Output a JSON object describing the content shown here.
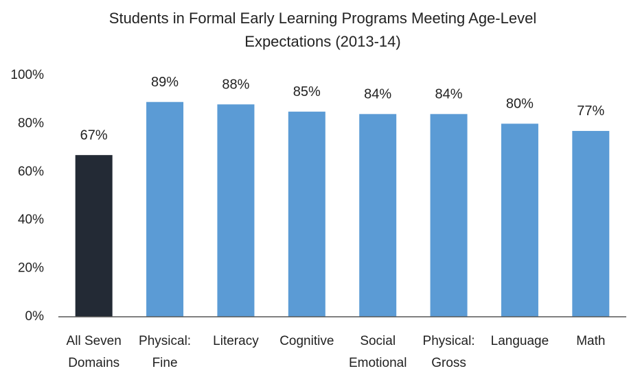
{
  "chart_data": {
    "type": "bar",
    "title": [
      "Students in Formal Early Learning Programs Meeting Age-Level",
      "Expectations (2013-14)"
    ],
    "categories": [
      [
        "All Seven",
        "Domains"
      ],
      [
        "Physical:",
        "Fine"
      ],
      [
        "Literacy"
      ],
      [
        "Cognitive"
      ],
      [
        "Social",
        "Emotional"
      ],
      [
        "Physical:",
        "Gross"
      ],
      [
        "Language"
      ],
      [
        "Math"
      ]
    ],
    "values": [
      67,
      89,
      88,
      85,
      84,
      84,
      80,
      77
    ],
    "value_labels": [
      "67%",
      "89%",
      "88%",
      "85%",
      "84%",
      "84%",
      "80%",
      "77%"
    ],
    "colors": [
      "#232a35",
      "#5b9bd5",
      "#5b9bd5",
      "#5b9bd5",
      "#5b9bd5",
      "#5b9bd5",
      "#5b9bd5",
      "#5b9bd5"
    ],
    "ylim": [
      0,
      100
    ],
    "yticks": [
      {
        "value": 0,
        "label": "0%"
      },
      {
        "value": 20,
        "label": "20%"
      },
      {
        "value": 40,
        "label": "40%"
      },
      {
        "value": 60,
        "label": "60%"
      },
      {
        "value": 80,
        "label": "80%"
      },
      {
        "value": 100,
        "label": "100%"
      }
    ],
    "grid": false
  }
}
